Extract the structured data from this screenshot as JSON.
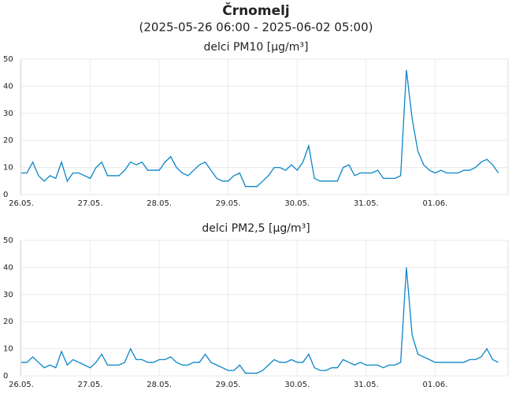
{
  "title": "Črnomelj",
  "subtitle": "(2025-05-26 06:00 - 2025-06-02 05:00)",
  "chart_data": [
    {
      "type": "line",
      "title": "delci PM10 [µg/m³]",
      "color": "#0a85c8",
      "grid": true,
      "xlim": [
        0,
        84
      ],
      "ylim": [
        0,
        50
      ],
      "yticks": [
        0,
        10,
        20,
        30,
        40,
        50
      ],
      "xticks": [
        {
          "value": 0,
          "label": "26.05."
        },
        {
          "value": 12,
          "label": "27.05."
        },
        {
          "value": 24,
          "label": "28.05."
        },
        {
          "value": 36,
          "label": "29.05."
        },
        {
          "value": 48,
          "label": "30.05."
        },
        {
          "value": 60,
          "label": "31.05."
        },
        {
          "value": 72,
          "label": "01.06."
        }
      ],
      "values": [
        8,
        8,
        12,
        7,
        5,
        7,
        6,
        12,
        5,
        8,
        8,
        7,
        6,
        10,
        12,
        7,
        7,
        7,
        9,
        12,
        11,
        12,
        9,
        9,
        9,
        12,
        14,
        10,
        8,
        7,
        9,
        11,
        12,
        9,
        6,
        5,
        5,
        7,
        8,
        3,
        3,
        3,
        5,
        7,
        10,
        10,
        9,
        11,
        9,
        12,
        18,
        6,
        5,
        5,
        5,
        5,
        10,
        11,
        7,
        8,
        8,
        8,
        9,
        6,
        6,
        6,
        7,
        46,
        28,
        16,
        11,
        9,
        8,
        9,
        8,
        8,
        8,
        9,
        9,
        10,
        12,
        13,
        11,
        8
      ]
    },
    {
      "type": "line",
      "title": "delci PM2,5 [µg/m³]",
      "color": "#0a85c8",
      "grid": true,
      "xlim": [
        0,
        84
      ],
      "ylim": [
        0,
        50
      ],
      "yticks": [
        0,
        10,
        20,
        30,
        40,
        50
      ],
      "xticks": [
        {
          "value": 0,
          "label": "26.05."
        },
        {
          "value": 12,
          "label": "27.05."
        },
        {
          "value": 24,
          "label": "28.05."
        },
        {
          "value": 36,
          "label": "29.05."
        },
        {
          "value": 48,
          "label": "30.05."
        },
        {
          "value": 60,
          "label": "31.05."
        },
        {
          "value": 72,
          "label": "01.06."
        }
      ],
      "values": [
        5,
        5,
        7,
        5,
        3,
        4,
        3,
        9,
        4,
        6,
        5,
        4,
        3,
        5,
        8,
        4,
        4,
        4,
        5,
        10,
        6,
        6,
        5,
        5,
        6,
        6,
        7,
        5,
        4,
        4,
        5,
        5,
        8,
        5,
        4,
        3,
        2,
        2,
        4,
        1,
        1,
        1,
        2,
        4,
        6,
        5,
        5,
        6,
        5,
        5,
        8,
        3,
        2,
        2,
        3,
        3,
        6,
        5,
        4,
        5,
        4,
        4,
        4,
        3,
        4,
        4,
        5,
        40,
        15,
        8,
        7,
        6,
        5,
        5,
        5,
        5,
        5,
        5,
        6,
        6,
        7,
        10,
        6,
        5
      ]
    }
  ]
}
